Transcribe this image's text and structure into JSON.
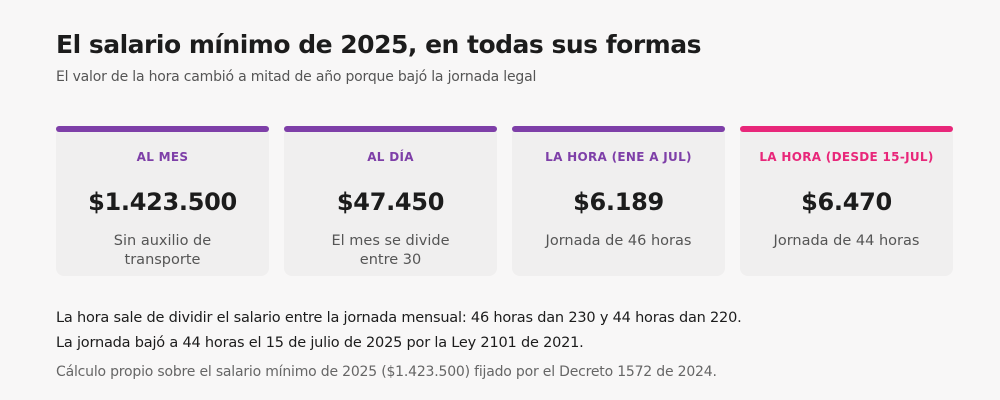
{
  "header": {
    "title": "El salario mínimo de 2025, en todas sus formas",
    "subtitle": "El valor de la hora cambió a mitad de año porque bajó la jornada legal"
  },
  "cards": [
    {
      "label": "AL MES",
      "value": "$1.423.500",
      "description": "Sin auxilio de transporte",
      "accent_color": "#7e3fa8"
    },
    {
      "label": "AL DÍA",
      "value": "$47.450",
      "description": "El mes se divide entre 30",
      "accent_color": "#7e3fa8"
    },
    {
      "label": "LA HORA (ENE A JUL)",
      "value": "$6.189",
      "description": "Jornada de 46 horas",
      "accent_color": "#7e3fa8"
    },
    {
      "label": "LA HORA (DESDE 15-JUL)",
      "value": "$6.470",
      "description": "Jornada de 44 horas",
      "accent_color": "#e8277a"
    }
  ],
  "notes": [
    "La hora sale de dividir el salario entre la jornada mensual: 46 horas dan 230 y 44 horas dan 220.",
    "La jornada bajó a 44 horas el 15 de julio de 2025 por la Ley 2101 de 2021."
  ],
  "source": "Cálculo propio sobre el salario mínimo de 2025 ($1.423.500) fijado por el Decreto 1572 de 2024."
}
